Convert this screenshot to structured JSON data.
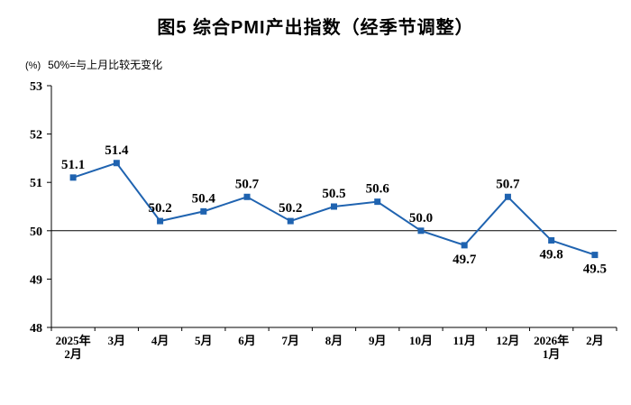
{
  "page": {
    "title": "图5 综合PMI产出指数（经季节调整）",
    "unit_label": "(%)",
    "subtitle": "50%=与上月比较无变化"
  },
  "chart_data": {
    "type": "line",
    "title": "图5 综合PMI产出指数（经季节调整）",
    "subtitle": "50%=与上月比较无变化",
    "unit": "%",
    "categories": [
      "2025年\n2月",
      "3月",
      "4月",
      "5月",
      "6月",
      "7月",
      "8月",
      "9月",
      "10月",
      "11月",
      "12月",
      "2026年\n1月",
      "2月"
    ],
    "values": [
      51.1,
      51.4,
      50.2,
      50.4,
      50.7,
      50.2,
      50.5,
      50.6,
      50.0,
      49.7,
      50.7,
      49.8,
      49.5
    ],
    "series_color": "#1F63B0",
    "axis_color": "#000000",
    "ylim": [
      48,
      53
    ],
    "ytick_step": 1,
    "reference_line": 50,
    "label_positions": [
      "above",
      "above",
      "above",
      "above",
      "above",
      "above",
      "above",
      "above",
      "above",
      "below",
      "above",
      "below",
      "below"
    ],
    "legend": "none",
    "grid": "off",
    "marker": "square"
  }
}
